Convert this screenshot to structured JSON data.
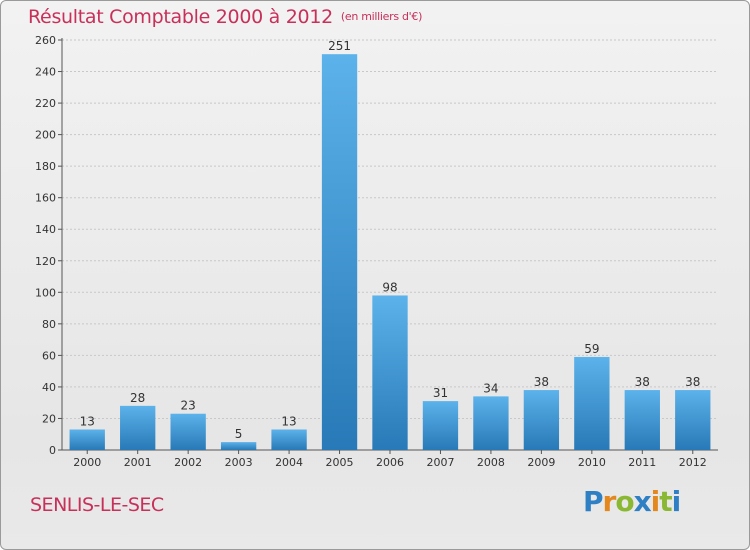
{
  "header": {
    "title": "Résultat Comptable 2000 à 2012",
    "subtitle": "(en milliers d'€)"
  },
  "footer": {
    "location": "SENLIS-LE-SEC",
    "logo_text": "Proxiti"
  },
  "colors": {
    "title": "#c8305a",
    "bar_top": "#5cb2ea",
    "bar_bottom": "#2879b7",
    "grid": "#c8c8c8"
  },
  "chart_data": {
    "type": "bar",
    "title": "Résultat Comptable 2000 à 2012",
    "subtitle": "(en milliers d'€)",
    "xlabel": "",
    "ylabel": "",
    "categories": [
      "2000",
      "2001",
      "2002",
      "2003",
      "2004",
      "2005",
      "2006",
      "2007",
      "2008",
      "2009",
      "2010",
      "2011",
      "2012"
    ],
    "values": [
      13,
      28,
      23,
      5,
      13,
      251,
      98,
      31,
      34,
      38,
      59,
      38,
      38
    ],
    "ylim": [
      0,
      260
    ],
    "yticks": [
      0,
      20,
      40,
      60,
      80,
      100,
      120,
      140,
      160,
      180,
      200,
      220,
      240,
      260
    ],
    "grid": true,
    "data_labels": true
  }
}
